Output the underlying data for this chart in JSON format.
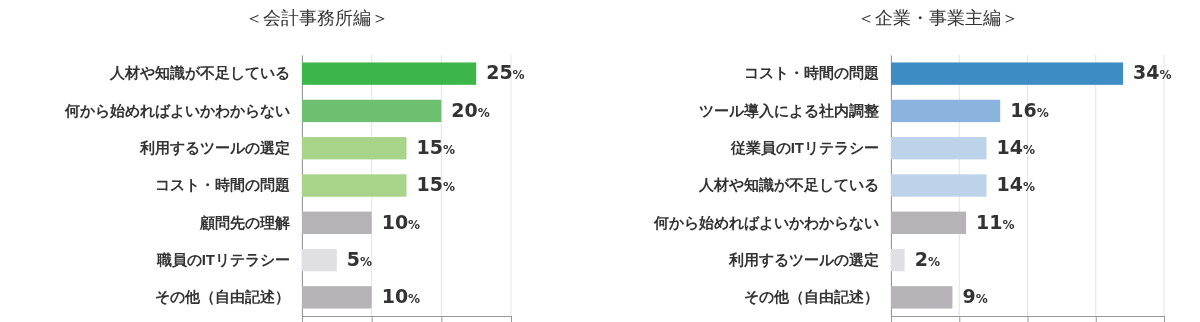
{
  "chart_data": [
    {
      "type": "bar",
      "title": "＜会計事務所編＞",
      "orientation": "horizontal",
      "categories": [
        "人材や知識が不足している",
        "何から始めればよいかわからない",
        "利用するツールの選定",
        "コスト・時間の問題",
        "顧問先の理解",
        "職員のITリテラシー",
        "その他（自由記述）"
      ],
      "values": [
        25,
        20,
        15,
        15,
        10,
        5,
        10
      ],
      "colors": [
        "#3cb64a",
        "#6cc070",
        "#a8d48a",
        "#a8d48a",
        "#b5b3b8",
        "#e0dfe3",
        "#b5b3b8"
      ],
      "value_labels": [
        "25%",
        "20%",
        "15%",
        "15%",
        "10%",
        "5%",
        "10%"
      ],
      "xlim": [
        0,
        30
      ],
      "xticks": [
        {
          "value": 0,
          "label": null
        },
        {
          "value": 10,
          "label": null
        },
        {
          "value": 20,
          "label": null
        },
        {
          "value": 30,
          "label": null
        }
      ],
      "grid": "x",
      "tick_labels": "y"
    },
    {
      "type": "bar",
      "title": "＜企業・事業主編＞",
      "orientation": "horizontal",
      "categories": [
        "コスト・時間の問題",
        "ツール導入による社内調整",
        "従業員のITリテラシー",
        "人材や知識が不足している",
        "何から始めればよいかわからない",
        "利用するツールの選定",
        "その他（自由記述）"
      ],
      "values": [
        34,
        16,
        14,
        14,
        11,
        2,
        9
      ],
      "colors": [
        "#3d8cc4",
        "#8ab4dd",
        "#bdd3ea",
        "#bdd3ea",
        "#b5b3b8",
        "#e0dfe3",
        "#b5b3b8"
      ],
      "value_labels": [
        "34%",
        "16%",
        "14%",
        "14%",
        "11%",
        "2%",
        "9%"
      ],
      "xlim": [
        0,
        40
      ],
      "xticks": [
        {
          "value": 0,
          "label": null
        },
        {
          "value": 10,
          "label": null
        },
        {
          "value": 20,
          "label": null
        },
        {
          "value": 30,
          "label": null
        },
        {
          "value": 40,
          "label": null
        }
      ],
      "grid": "x",
      "tick_labels": "y"
    }
  ]
}
